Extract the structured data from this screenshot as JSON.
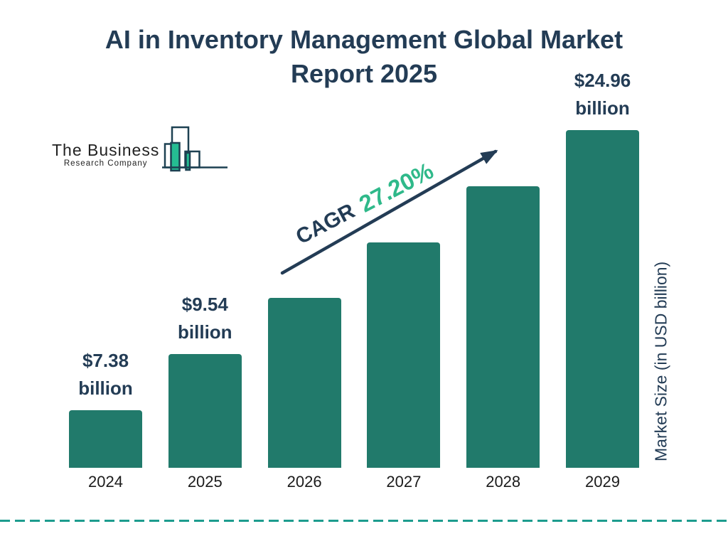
{
  "title": {
    "line1": "AI in Inventory Management Global Market",
    "line2": "Report 2025"
  },
  "logo": {
    "name": "The Business",
    "subname": "Research Company"
  },
  "annotation": {
    "cagr_label": "CAGR",
    "cagr_value": "27.20%"
  },
  "chart_data": {
    "type": "bar",
    "title": "AI in Inventory Management Global Market Report 2025",
    "categories": [
      "2024",
      "2025",
      "2026",
      "2027",
      "2028",
      "2029"
    ],
    "values": [
      7.38,
      9.54,
      null,
      null,
      null,
      24.96
    ],
    "bar_value_labels": [
      {
        "line1": "$7.38",
        "line2": "billion"
      },
      {
        "line1": "$9.54",
        "line2": "billion"
      },
      null,
      null,
      null,
      {
        "line1": "$24.96",
        "line2": "billion"
      }
    ],
    "cagr": "27.20%",
    "xlabel": "",
    "ylabel": "Market Size (in USD billion)",
    "legend": false,
    "grid": false
  },
  "colors": {
    "bar": "#217a6b",
    "navy_text": "#233c55",
    "green_accent": "#2fb98a",
    "year_label": "#1b1b1b",
    "dashed_rule": "#1d9c8e",
    "logo_outline": "#1d4152",
    "logo_green": "#25bd92"
  }
}
